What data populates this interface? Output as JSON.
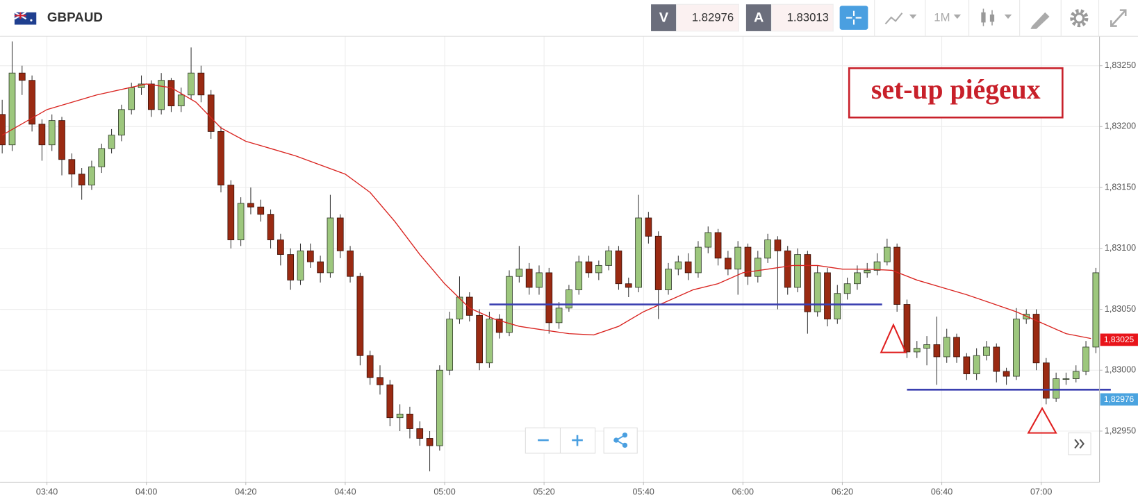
{
  "header": {
    "symbol": "GBPAUD",
    "bid_label": "V",
    "bid": "1.82976",
    "ask_label": "A",
    "ask": "1.83013",
    "timeframe": "1M"
  },
  "chart_data": {
    "type": "candlestick",
    "annotation": "set-up piégeux",
    "up_color": "#9dc77d",
    "down_color": "#9a2a12",
    "x": [
      "03:31",
      "03:33",
      "03:35",
      "03:37",
      "03:39",
      "03:41",
      "03:43",
      "03:45",
      "03:47",
      "03:49",
      "03:51",
      "03:53",
      "03:55",
      "03:57",
      "03:59",
      "04:01",
      "04:03",
      "04:05",
      "04:07",
      "04:09",
      "04:11",
      "04:13",
      "04:15",
      "04:17",
      "04:19",
      "04:21",
      "04:23",
      "04:25",
      "04:27",
      "04:29",
      "04:31",
      "04:33",
      "04:35",
      "04:37",
      "04:39",
      "04:41",
      "04:43",
      "04:45",
      "04:47",
      "04:49",
      "04:51",
      "04:53",
      "04:55",
      "04:57",
      "04:59",
      "05:01",
      "05:03",
      "05:05",
      "05:07",
      "05:09",
      "05:11",
      "05:13",
      "05:15",
      "05:17",
      "05:19",
      "05:21",
      "05:23",
      "05:25",
      "05:27",
      "05:29",
      "05:31",
      "05:33",
      "05:35",
      "05:37",
      "05:39",
      "05:41",
      "05:43",
      "05:45",
      "05:47",
      "05:49",
      "05:51",
      "05:53",
      "05:55",
      "05:57",
      "05:59",
      "06:01",
      "06:03",
      "06:05",
      "06:07",
      "06:09",
      "06:11",
      "06:13",
      "06:15",
      "06:17",
      "06:19",
      "06:21",
      "06:23",
      "06:25",
      "06:27",
      "06:29",
      "06:31",
      "06:33",
      "06:35",
      "06:37",
      "06:39",
      "06:41",
      "06:43",
      "06:45",
      "06:47",
      "06:49",
      "06:51",
      "06:53",
      "06:55",
      "06:57",
      "06:59",
      "07:01",
      "07:03",
      "07:05",
      "07:07",
      "07:09",
      "07:11"
    ],
    "open": [
      1.8321,
      1.83185,
      1.83244,
      1.83238,
      1.83202,
      1.83185,
      1.83205,
      1.83173,
      1.83161,
      1.83152,
      1.83167,
      1.83182,
      1.83193,
      1.83214,
      1.83232,
      1.83235,
      1.83214,
      1.83238,
      1.83217,
      1.83226,
      1.83244,
      1.83226,
      1.83196,
      1.83152,
      1.83107,
      1.83137,
      1.83134,
      1.83128,
      1.83107,
      1.83095,
      1.83074,
      1.83098,
      1.83089,
      1.8308,
      1.83125,
      1.83098,
      1.83077,
      1.83012,
      1.82994,
      1.82988,
      1.82961,
      1.82964,
      1.82952,
      1.82944,
      1.82938,
      1.83,
      1.83042,
      1.8306,
      1.83045,
      1.83006,
      1.83042,
      1.83031,
      1.83077,
      1.83083,
      1.83068,
      1.8308,
      1.83039,
      1.83051,
      1.83066,
      1.83089,
      1.8308,
      1.83086,
      1.83098,
      1.83071,
      1.83068,
      1.83125,
      1.8311,
      1.83066,
      1.83083,
      1.83089,
      1.8308,
      1.83101,
      1.83113,
      1.83092,
      1.83083,
      1.83101,
      1.83077,
      1.83092,
      1.83107,
      1.83098,
      1.83068,
      1.83095,
      1.83048,
      1.8308,
      1.83042,
      1.83063,
      1.83071,
      1.8308,
      1.83082,
      1.83089,
      1.83101,
      1.83054,
      1.83015,
      1.83018,
      1.83021,
      1.83011,
      1.83027,
      1.83011,
      1.82997,
      1.83012,
      1.83019,
      1.82999,
      1.82995,
      1.83042,
      1.83046,
      1.83006,
      1.82977,
      1.82993,
      1.82993,
      1.82999,
      1.83019
    ],
    "high": [
      1.83222,
      1.8327,
      1.8325,
      1.83242,
      1.83206,
      1.8321,
      1.83208,
      1.83178,
      1.83166,
      1.83172,
      1.83186,
      1.83198,
      1.83218,
      1.83236,
      1.83242,
      1.83238,
      1.83244,
      1.8324,
      1.83232,
      1.83265,
      1.8325,
      1.8323,
      1.832,
      1.83156,
      1.83142,
      1.8315,
      1.8314,
      1.83132,
      1.83112,
      1.831,
      1.83104,
      1.83104,
      1.83094,
      1.83144,
      1.83128,
      1.83102,
      1.8308,
      1.83016,
      1.83004,
      1.82992,
      1.82972,
      1.8297,
      1.82958,
      1.8295,
      1.83004,
      1.83048,
      1.83077,
      1.83064,
      1.8305,
      1.83048,
      1.83046,
      1.83082,
      1.83102,
      1.83088,
      1.83086,
      1.83084,
      1.83056,
      1.8307,
      1.83094,
      1.83094,
      1.8309,
      1.83102,
      1.83102,
      1.83076,
      1.83144,
      1.8313,
      1.83114,
      1.83088,
      1.83094,
      1.83096,
      1.83106,
      1.83118,
      1.83116,
      1.83098,
      1.83106,
      1.83104,
      1.83098,
      1.83112,
      1.8311,
      1.83102,
      1.831,
      1.83098,
      1.83086,
      1.83084,
      1.8307,
      1.83076,
      1.83086,
      1.83088,
      1.83096,
      1.83108,
      1.83104,
      1.83058,
      1.83024,
      1.83028,
      1.83044,
      1.83034,
      1.8303,
      1.83014,
      1.83018,
      1.83024,
      1.83022,
      1.83002,
      1.83051,
      1.8305,
      1.8305,
      1.8301,
      1.82998,
      1.82998,
      1.83004,
      1.83024,
      1.83084
    ],
    "low": [
      1.83178,
      1.8318,
      1.83226,
      1.83196,
      1.83172,
      1.8318,
      1.8316,
      1.8315,
      1.8314,
      1.83148,
      1.83162,
      1.83178,
      1.83188,
      1.8321,
      1.83226,
      1.83208,
      1.8321,
      1.83212,
      1.83212,
      1.83222,
      1.8322,
      1.8319,
      1.83146,
      1.831,
      1.83102,
      1.83128,
      1.83122,
      1.831,
      1.83086,
      1.83066,
      1.8307,
      1.83084,
      1.83072,
      1.83076,
      1.83092,
      1.83072,
      1.83004,
      1.82988,
      1.8298,
      1.82954,
      1.8295,
      1.82944,
      1.82938,
      1.82917,
      1.82934,
      1.82996,
      1.83038,
      1.8304,
      1.83,
      1.83002,
      1.83026,
      1.83028,
      1.83072,
      1.83062,
      1.83062,
      1.8303,
      1.83034,
      1.83048,
      1.83062,
      1.83076,
      1.83074,
      1.83082,
      1.83066,
      1.8306,
      1.83064,
      1.83104,
      1.83042,
      1.83062,
      1.83078,
      1.83074,
      1.83076,
      1.83096,
      1.83086,
      1.83078,
      1.83062,
      1.8307,
      1.83072,
      1.83088,
      1.8305,
      1.83062,
      1.83064,
      1.8303,
      1.83044,
      1.83036,
      1.83038,
      1.83058,
      1.83066,
      1.83076,
      1.83078,
      1.83086,
      1.83048,
      1.8301,
      1.8301,
      1.83004,
      1.82988,
      1.83006,
      1.83006,
      1.82992,
      1.82992,
      1.83008,
      1.8299,
      1.82988,
      1.82992,
      1.83038,
      1.83,
      1.82972,
      1.82974,
      1.82988,
      1.8299,
      1.82996,
      1.83014
    ],
    "close": [
      1.83185,
      1.83244,
      1.83238,
      1.83202,
      1.83185,
      1.83205,
      1.83173,
      1.83161,
      1.83152,
      1.83167,
      1.83182,
      1.83193,
      1.83214,
      1.83232,
      1.83235,
      1.83214,
      1.83238,
      1.83217,
      1.83226,
      1.83244,
      1.83226,
      1.83196,
      1.83152,
      1.83107,
      1.83137,
      1.83134,
      1.83128,
      1.83107,
      1.83095,
      1.83074,
      1.83098,
      1.83089,
      1.8308,
      1.83125,
      1.83098,
      1.83077,
      1.83012,
      1.82994,
      1.82988,
      1.82961,
      1.82964,
      1.82952,
      1.82944,
      1.82938,
      1.83,
      1.83042,
      1.8306,
      1.83045,
      1.83006,
      1.83042,
      1.83031,
      1.83077,
      1.83083,
      1.83068,
      1.8308,
      1.83039,
      1.83051,
      1.83066,
      1.83089,
      1.8308,
      1.83086,
      1.83098,
      1.83071,
      1.83068,
      1.83125,
      1.8311,
      1.83066,
      1.83083,
      1.83089,
      1.8308,
      1.83101,
      1.83113,
      1.83092,
      1.83083,
      1.83101,
      1.83077,
      1.83092,
      1.83107,
      1.83098,
      1.83068,
      1.83095,
      1.83048,
      1.8308,
      1.83042,
      1.83063,
      1.83071,
      1.8308,
      1.83082,
      1.83089,
      1.83101,
      1.83054,
      1.83015,
      1.83018,
      1.83021,
      1.83011,
      1.83027,
      1.83011,
      1.82997,
      1.83012,
      1.83019,
      1.82999,
      1.82995,
      1.83042,
      1.83046,
      1.83006,
      1.82977,
      1.82993,
      1.82993,
      1.82999,
      1.83019,
      1.8308
    ],
    "ma": {
      "color": "#d9231f",
      "x": [
        "03:31",
        "03:40",
        "03:50",
        "04:00",
        "04:05",
        "04:10",
        "04:15",
        "04:20",
        "04:25",
        "04:30",
        "04:40",
        "04:45",
        "04:50",
        "04:55",
        "05:00",
        "05:05",
        "05:10",
        "05:15",
        "05:20",
        "05:25",
        "05:30",
        "05:35",
        "05:40",
        "05:45",
        "05:50",
        "05:55",
        "06:00",
        "06:05",
        "06:10",
        "06:15",
        "06:20",
        "06:25",
        "06:30",
        "06:35",
        "06:40",
        "06:45",
        "06:50",
        "06:55",
        "07:00",
        "07:05",
        "07:10"
      ],
      "values": [
        1.83193,
        1.83214,
        1.83226,
        1.83235,
        1.83232,
        1.8322,
        1.83199,
        1.83188,
        1.83182,
        1.83176,
        1.83161,
        1.83146,
        1.83122,
        1.83095,
        1.83071,
        1.83051,
        1.83042,
        1.83036,
        1.83033,
        1.8303,
        1.83029,
        1.83036,
        1.83048,
        1.83057,
        1.83066,
        1.83071,
        1.8308,
        1.83083,
        1.83086,
        1.83086,
        1.83083,
        1.83083,
        1.83082,
        1.83074,
        1.83068,
        1.83062,
        1.83055,
        1.83048,
        1.83039,
        1.8303,
        1.83026
      ]
    },
    "hlines": [
      {
        "value": 1.83054,
        "from": "05:09",
        "to": "06:28",
        "color": "#3a3fb0"
      },
      {
        "value": 1.82984,
        "from": "06:33",
        "to": "07:14",
        "color": "#3a3fb0"
      }
    ],
    "price_tags": [
      {
        "value": 1.83025,
        "label": "1,83025",
        "color": "#e8141a"
      },
      {
        "value": 1.82976,
        "label": "1,82976",
        "color": "#4aa3df"
      }
    ],
    "ylim": [
      1.82908,
      1.83273
    ],
    "yticks": [
      {
        "value": 1.8295,
        "label": "1,82950"
      },
      {
        "value": 1.83,
        "label": "1,83000"
      },
      {
        "value": 1.8305,
        "label": "1,83050"
      },
      {
        "value": 1.831,
        "label": "1,83100"
      },
      {
        "value": 1.8315,
        "label": "1,83150"
      },
      {
        "value": 1.832,
        "label": "1,83200"
      },
      {
        "value": 1.8325,
        "label": "1,83250"
      }
    ],
    "xticks": [
      "03:40",
      "04:00",
      "04:20",
      "04:40",
      "05:00",
      "05:20",
      "05:40",
      "06:00",
      "06:20",
      "06:40",
      "07:00"
    ],
    "grid": true
  }
}
